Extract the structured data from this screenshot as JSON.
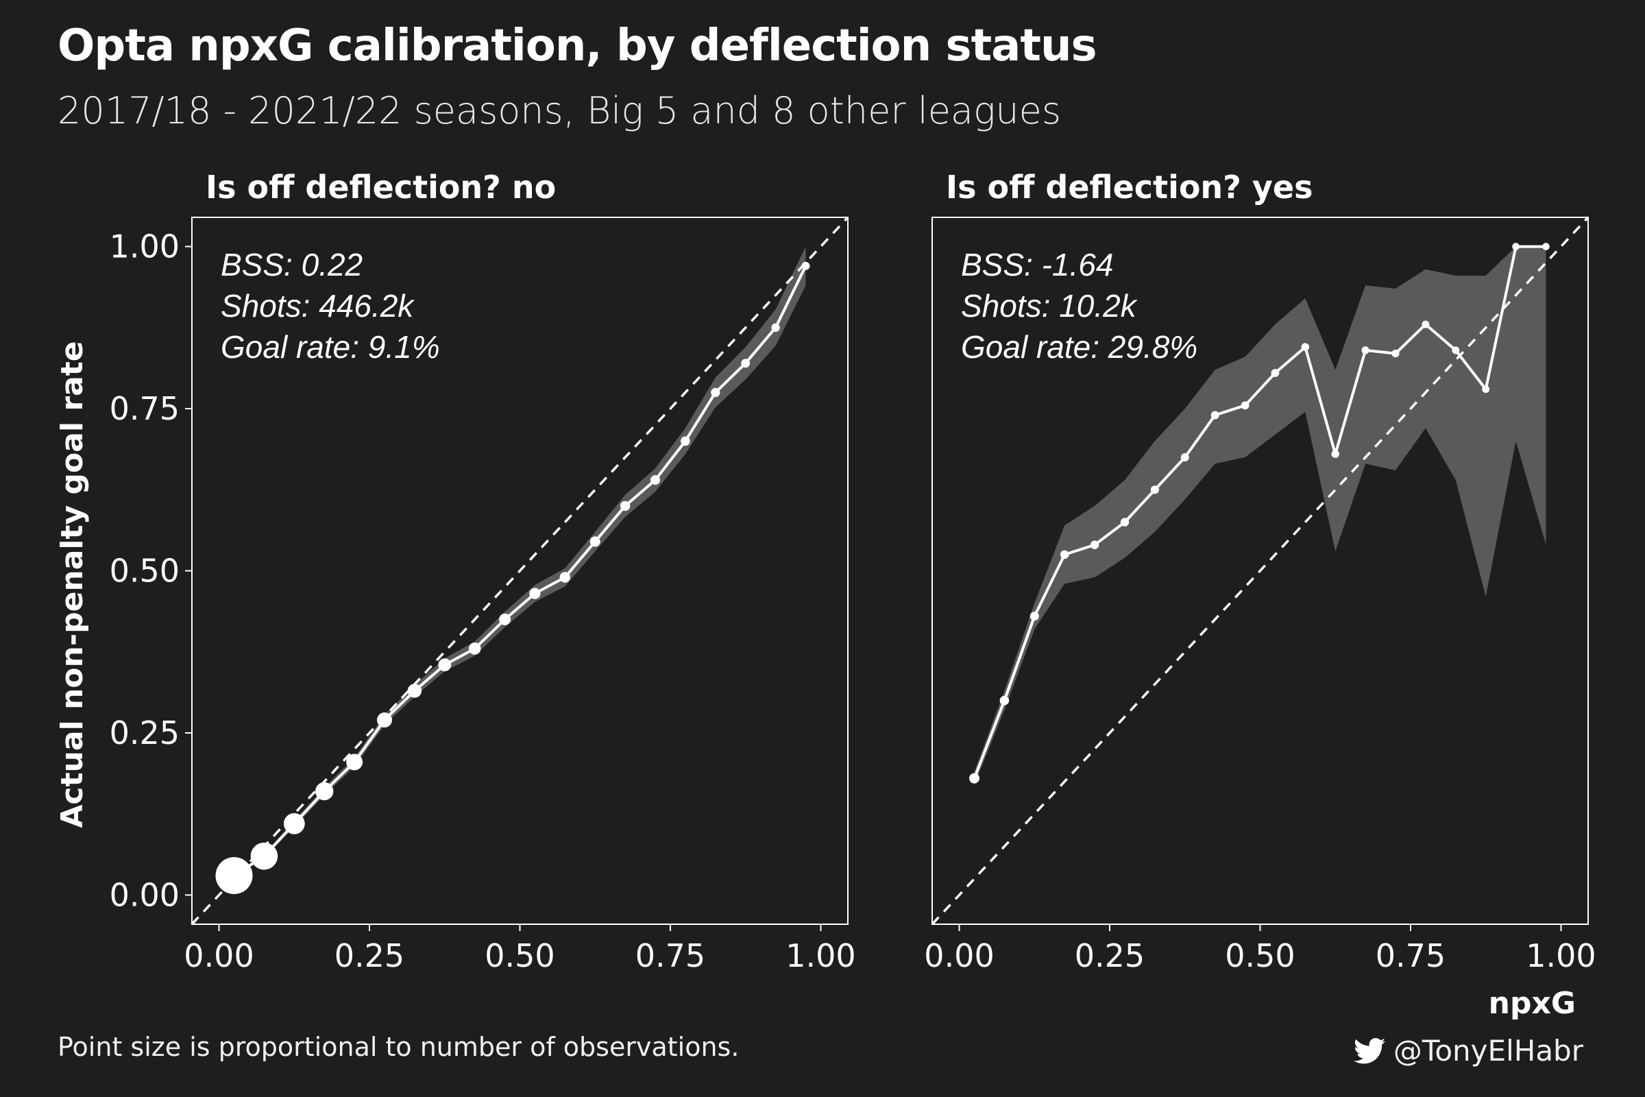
{
  "title": "Opta npxG calibration, by deflection status",
  "subtitle": "2017/18 - 2021/22 seasons, Big 5 and 8 other leagues",
  "caption": "Point size is proportional to number of observations.",
  "credit": "@TonyElHabr",
  "credit_icon": "twitter-icon",
  "colors": {
    "background": "#1e1e1e",
    "line": "#ffffff",
    "ribbon": "#5a5a5a"
  },
  "chart_data": [
    {
      "type": "line",
      "facet_label": "Is off deflection? no",
      "xlabel": "",
      "ylabel": "Actual non-penalty goal rate",
      "xlim": [
        0,
        1
      ],
      "ylim": [
        0,
        1
      ],
      "x_ticks": [
        "0.00",
        "0.25",
        "0.50",
        "0.75",
        "1.00"
      ],
      "y_ticks": [
        "0.00",
        "0.25",
        "0.50",
        "0.75",
        "1.00"
      ],
      "reference_line": "y = x (dashed)",
      "annotations": [
        "BSS: 0.22",
        "Shots: 446.2k",
        "Goal rate: 9.1%"
      ],
      "x": [
        0.025,
        0.075,
        0.125,
        0.175,
        0.225,
        0.275,
        0.325,
        0.375,
        0.425,
        0.475,
        0.525,
        0.575,
        0.625,
        0.675,
        0.725,
        0.775,
        0.825,
        0.875,
        0.925,
        0.975
      ],
      "y": [
        0.03,
        0.06,
        0.11,
        0.16,
        0.205,
        0.27,
        0.315,
        0.355,
        0.38,
        0.425,
        0.465,
        0.49,
        0.545,
        0.6,
        0.64,
        0.7,
        0.775,
        0.82,
        0.875,
        0.97
      ],
      "y_low": [
        0.028,
        0.057,
        0.105,
        0.154,
        0.198,
        0.262,
        0.306,
        0.345,
        0.369,
        0.413,
        0.452,
        0.476,
        0.53,
        0.583,
        0.622,
        0.68,
        0.752,
        0.795,
        0.847,
        0.94
      ],
      "y_high": [
        0.032,
        0.063,
        0.115,
        0.166,
        0.212,
        0.278,
        0.324,
        0.365,
        0.391,
        0.437,
        0.478,
        0.504,
        0.56,
        0.617,
        0.658,
        0.72,
        0.798,
        0.845,
        0.903,
        1.0
      ],
      "n_obs": [
        200000,
        90000,
        45000,
        28000,
        20000,
        15000,
        11000,
        8000,
        6000,
        5000,
        4000,
        3000,
        2500,
        2000,
        1600,
        1300,
        1000,
        800,
        600,
        400
      ]
    },
    {
      "type": "line",
      "facet_label": "Is off deflection? yes",
      "xlabel": "npxG",
      "ylabel": "",
      "xlim": [
        0,
        1
      ],
      "ylim": [
        0,
        1
      ],
      "x_ticks": [
        "0.00",
        "0.25",
        "0.50",
        "0.75",
        "1.00"
      ],
      "y_ticks": [],
      "reference_line": "y = x (dashed)",
      "annotations": [
        "BSS: -1.64",
        "Shots: 10.2k",
        "Goal rate: 29.8%"
      ],
      "x": [
        0.025,
        0.075,
        0.125,
        0.175,
        0.225,
        0.275,
        0.325,
        0.375,
        0.425,
        0.475,
        0.525,
        0.575,
        0.625,
        0.675,
        0.725,
        0.775,
        0.825,
        0.875,
        0.925,
        0.975
      ],
      "y": [
        0.18,
        0.3,
        0.43,
        0.525,
        0.54,
        0.575,
        0.625,
        0.675,
        0.74,
        0.755,
        0.805,
        0.845,
        0.68,
        0.84,
        0.835,
        0.88,
        0.84,
        0.78,
        1.0,
        1.0
      ],
      "y_low": [
        0.17,
        0.285,
        0.41,
        0.48,
        0.49,
        0.52,
        0.56,
        0.61,
        0.665,
        0.675,
        0.71,
        0.745,
        0.53,
        0.665,
        0.655,
        0.72,
        0.64,
        0.46,
        0.7,
        0.54
      ],
      "y_high": [
        0.19,
        0.315,
        0.45,
        0.57,
        0.6,
        0.64,
        0.7,
        0.75,
        0.81,
        0.83,
        0.88,
        0.92,
        0.81,
        0.94,
        0.935,
        0.965,
        0.955,
        0.955,
        1.0,
        1.0
      ],
      "n_obs": [
        2500,
        1300,
        900,
        700,
        600,
        550,
        500,
        450,
        400,
        350,
        300,
        250,
        200,
        160,
        130,
        110,
        90,
        70,
        50,
        40
      ]
    }
  ]
}
